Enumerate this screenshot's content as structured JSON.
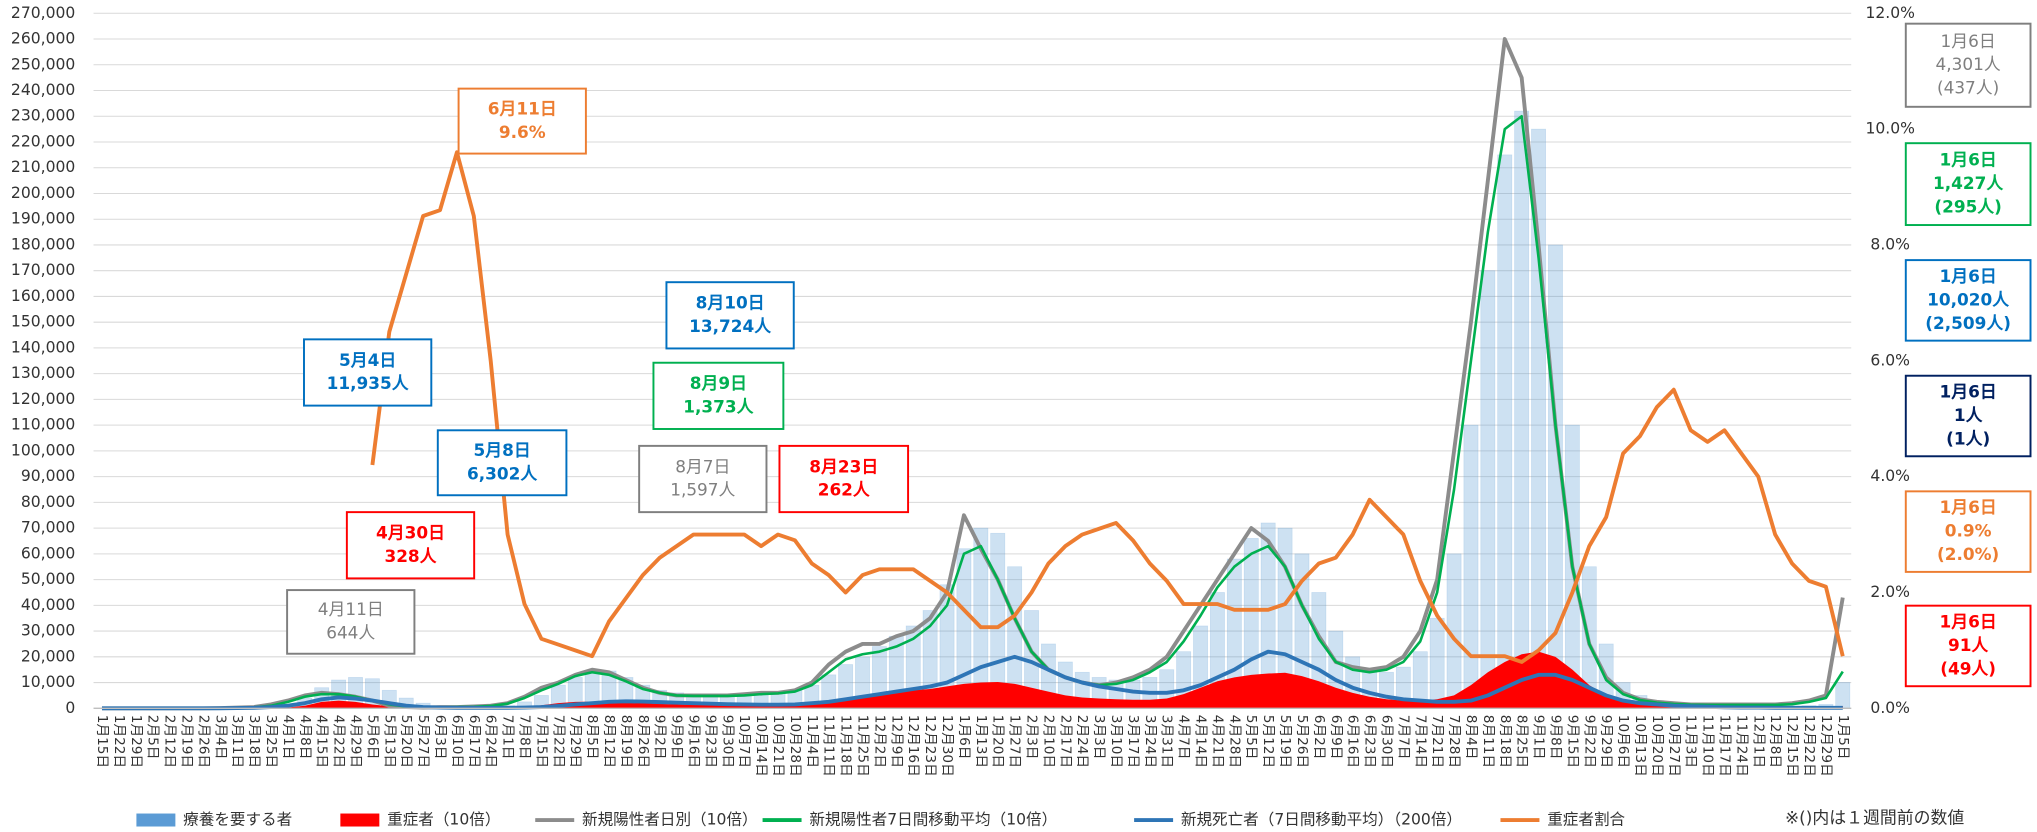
{
  "chart_data": {
    "type": "combo",
    "categories": [
      "1月15日",
      "1月22日",
      "1月29日",
      "2月5日",
      "2月12日",
      "2月19日",
      "2月26日",
      "3月4日",
      "3月11日",
      "3月18日",
      "3月25日",
      "4月1日",
      "4月8日",
      "4月15日",
      "4月22日",
      "4月29日",
      "5月6日",
      "5月13日",
      "5月20日",
      "5月27日",
      "6月3日",
      "6月10日",
      "6月17日",
      "6月24日",
      "7月1日",
      "7月8日",
      "7月15日",
      "7月22日",
      "7月29日",
      "8月5日",
      "8月12日",
      "8月19日",
      "8月26日",
      "9月2日",
      "9月9日",
      "9月16日",
      "9月23日",
      "9月30日",
      "10月7日",
      "10月14日",
      "10月21日",
      "10月28日",
      "11月4日",
      "11月11日",
      "11月18日",
      "11月25日",
      "12月2日",
      "12月9日",
      "12月16日",
      "12月23日",
      "12月30日",
      "1月6日",
      "1月13日",
      "1月20日",
      "1月27日",
      "2月3日",
      "2月10日",
      "2月17日",
      "2月24日",
      "3月3日",
      "3月10日",
      "3月17日",
      "3月24日",
      "3月31日",
      "4月7日",
      "4月14日",
      "4月21日",
      "4月28日",
      "5月5日",
      "5月12日",
      "5月19日",
      "5月26日",
      "6月2日",
      "6月9日",
      "6月16日",
      "6月23日",
      "6月30日",
      "7月7日",
      "7月14日",
      "7月21日",
      "7月28日",
      "8月4日",
      "8月11日",
      "8月18日",
      "8月25日",
      "9月1日",
      "9月8日",
      "9月15日",
      "9月22日",
      "9月29日",
      "10月6日",
      "10月13日",
      "10月20日",
      "10月27日",
      "11月3日",
      "11月10日",
      "11月17日",
      "11月24日",
      "12月1日",
      "12月8日",
      "12月15日",
      "12月22日",
      "12月29日",
      "1月5日"
    ],
    "series": [
      {
        "name": "療養を要する者",
        "color": "#5b9bd5",
        "kind": "bar",
        "values": [
          0,
          0,
          0,
          0,
          0,
          0,
          0,
          100,
          200,
          300,
          500,
          1500,
          4000,
          8000,
          11000,
          12000,
          11500,
          7000,
          4000,
          2000,
          1000,
          500,
          300,
          400,
          1000,
          2500,
          5000,
          9000,
          12000,
          14000,
          14500,
          12000,
          9000,
          7000,
          6000,
          5000,
          5000,
          5000,
          5000,
          5500,
          6000,
          7000,
          9000,
          13000,
          17000,
          20000,
          24000,
          28000,
          32000,
          38000,
          48000,
          62000,
          70000,
          68000,
          55000,
          38000,
          25000,
          18000,
          14000,
          12000,
          11000,
          11000,
          12000,
          15000,
          22000,
          32000,
          45000,
          58000,
          66000,
          72000,
          70000,
          60000,
          45000,
          30000,
          20000,
          15000,
          14000,
          16000,
          22000,
          35000,
          60000,
          110000,
          170000,
          215000,
          232000,
          225000,
          180000,
          110000,
          55000,
          25000,
          10000,
          5000,
          3000,
          2000,
          1500,
          1200,
          1000,
          1000,
          900,
          900,
          900,
          1000,
          1500,
          10020
        ]
      },
      {
        "name": "重症者（10倍）",
        "color": "#ff0000",
        "kind": "area",
        "values": [
          0,
          0,
          0,
          0,
          0,
          0,
          0,
          0,
          0,
          0,
          0,
          300,
          1000,
          2500,
          3000,
          2500,
          1500,
          800,
          400,
          200,
          100,
          100,
          100,
          100,
          200,
          500,
          1200,
          2000,
          2500,
          2600,
          2500,
          2300,
          2000,
          1700,
          1500,
          1400,
          1300,
          1300,
          1300,
          1300,
          1400,
          1600,
          2000,
          3000,
          4000,
          5000,
          6000,
          6500,
          7000,
          7500,
          8500,
          9500,
          10000,
          10200,
          9500,
          8000,
          6500,
          5000,
          4200,
          3800,
          3500,
          3300,
          3300,
          3800,
          5500,
          8000,
          10500,
          12000,
          13000,
          13500,
          13800,
          12500,
          10500,
          8000,
          6000,
          4500,
          3500,
          3000,
          3000,
          3500,
          5000,
          9000,
          14000,
          18000,
          21000,
          22000,
          20000,
          15000,
          9000,
          5000,
          3000,
          2000,
          1500,
          1200,
          1000,
          900,
          800,
          700,
          600,
          600,
          600,
          700,
          800,
          910
        ]
      },
      {
        "name": "新規陽性者日別（10倍）",
        "color": "#8c8c8c",
        "kind": "line",
        "width": 3,
        "values": [
          0,
          0,
          0,
          0,
          0,
          0,
          0,
          100,
          300,
          500,
          1500,
          3000,
          5000,
          6000,
          5500,
          4500,
          3000,
          1000,
          500,
          300,
          500,
          500,
          700,
          1000,
          2000,
          4500,
          8000,
          10000,
          13000,
          15000,
          14000,
          11000,
          8000,
          6000,
          5000,
          5000,
          5000,
          5000,
          5500,
          6000,
          6000,
          7000,
          10000,
          17000,
          22000,
          25000,
          25000,
          28000,
          30000,
          35000,
          45000,
          75000,
          62000,
          50000,
          35000,
          22000,
          15000,
          12000,
          10000,
          9000,
          10000,
          12000,
          15000,
          20000,
          30000,
          40000,
          50000,
          60000,
          70000,
          65000,
          55000,
          40000,
          28000,
          18000,
          16000,
          15000,
          16000,
          20000,
          30000,
          50000,
          100000,
          150000,
          205000,
          260000,
          245000,
          180000,
          110000,
          55000,
          25000,
          12000,
          6000,
          3500,
          2500,
          2000,
          1500,
          1500,
          1500,
          1500,
          1500,
          1500,
          2000,
          3000,
          5000,
          43010
        ]
      },
      {
        "name": "新規陽性者7日間移動平均（10倍）",
        "color": "#00b050",
        "kind": "line",
        "width": 2,
        "values": [
          0,
          0,
          0,
          0,
          0,
          0,
          0,
          100,
          200,
          400,
          1000,
          2500,
          4500,
          5500,
          5500,
          4500,
          3000,
          1500,
          700,
          400,
          400,
          500,
          600,
          900,
          1800,
          4000,
          7000,
          9500,
          12500,
          14000,
          13000,
          10500,
          7500,
          6000,
          5000,
          4800,
          4800,
          4800,
          5000,
          5500,
          5800,
          6500,
          9000,
          14000,
          19000,
          21000,
          22000,
          24000,
          27000,
          32000,
          40000,
          60000,
          63000,
          50000,
          35000,
          22000,
          15000,
          12000,
          10000,
          9000,
          9500,
          11000,
          14000,
          18000,
          26000,
          36000,
          47000,
          55000,
          60000,
          63000,
          55000,
          40000,
          27000,
          18000,
          15000,
          14000,
          15000,
          18000,
          26000,
          45000,
          85000,
          135000,
          185000,
          225000,
          230000,
          175000,
          110000,
          55000,
          25000,
          11000,
          5500,
          3200,
          2200,
          1700,
          1400,
          1300,
          1300,
          1300,
          1300,
          1300,
          1600,
          2500,
          4000,
          14270
        ]
      },
      {
        "name": "新規死亡者（7日間移動平均）（200倍）",
        "color": "#2e75b6",
        "kind": "line",
        "width": 3,
        "values": [
          0,
          0,
          0,
          0,
          0,
          0,
          0,
          0,
          100,
          200,
          500,
          1000,
          2000,
          3500,
          4200,
          3800,
          3000,
          2000,
          1000,
          500,
          300,
          200,
          200,
          200,
          200,
          300,
          500,
          900,
          1500,
          2000,
          2500,
          2700,
          2600,
          2400,
          2200,
          2000,
          1800,
          1600,
          1500,
          1400,
          1400,
          1500,
          2000,
          2500,
          3500,
          4500,
          5500,
          6500,
          7500,
          8500,
          10000,
          13000,
          16000,
          18000,
          20000,
          18000,
          15000,
          12000,
          10000,
          8500,
          7500,
          6500,
          6000,
          6000,
          7000,
          9000,
          12000,
          15000,
          19000,
          22000,
          21000,
          18000,
          15000,
          11000,
          8000,
          6000,
          4500,
          3500,
          3000,
          2500,
          2500,
          3000,
          5000,
          8000,
          11000,
          13000,
          13000,
          11000,
          8000,
          5000,
          3000,
          2000,
          1500,
          1000,
          800,
          600,
          400,
          300,
          300,
          200,
          200,
          200,
          200,
          200
        ]
      },
      {
        "name": "重症者割合",
        "color": "#ed7d31",
        "kind": "line",
        "width": 3,
        "axis": "y2",
        "values": [
          null,
          null,
          null,
          null,
          null,
          null,
          null,
          null,
          null,
          null,
          null,
          null,
          null,
          null,
          null,
          null,
          4.2,
          6.5,
          7.5,
          8.5,
          8.6,
          9.6,
          8.5,
          6.0,
          3.0,
          1.8,
          1.2,
          1.1,
          1.0,
          0.9,
          1.5,
          1.9,
          2.3,
          2.6,
          2.8,
          3.0,
          3.0,
          3.0,
          3.0,
          2.8,
          3.0,
          2.9,
          2.5,
          2.3,
          2.0,
          2.3,
          2.4,
          2.4,
          2.4,
          2.2,
          2.0,
          1.7,
          1.4,
          1.4,
          1.6,
          2.0,
          2.5,
          2.8,
          3.0,
          3.1,
          3.2,
          2.9,
          2.5,
          2.2,
          1.8,
          1.8,
          1.8,
          1.7,
          1.7,
          1.7,
          1.8,
          2.2,
          2.5,
          2.6,
          3.0,
          3.6,
          3.3,
          3.0,
          2.2,
          1.6,
          1.2,
          0.9,
          0.9,
          0.9,
          0.8,
          1.0,
          1.3,
          2.0,
          2.8,
          3.3,
          4.4,
          4.7,
          5.2,
          5.5,
          4.8,
          4.6,
          4.8,
          4.4,
          4.0,
          3.0,
          2.5,
          2.2,
          2.1,
          0.9
        ]
      }
    ],
    "ylim": [
      0,
      270000
    ],
    "yticks": [
      0,
      {
        "value": 10000,
        "label": "10,000"
      },
      {
        "value": 20000,
        "label": "20,000"
      },
      {
        "value": 30000,
        "label": "30,000"
      },
      {
        "value": 40000,
        "label": "40,000"
      },
      {
        "value": 50000,
        "label": "50,000"
      },
      {
        "value": 60000,
        "label": "60,000"
      },
      {
        "value": 70000,
        "label": "70,000"
      },
      {
        "value": 80000,
        "label": "80,000"
      },
      {
        "value": 90000,
        "label": "90,000"
      },
      {
        "value": 100000,
        "label": "100,000"
      },
      {
        "value": 110000,
        "label": "110,000"
      },
      {
        "value": 120000,
        "label": "120,000"
      },
      {
        "value": 130000,
        "label": "130,000"
      },
      {
        "value": 140000,
        "label": "140,000"
      },
      {
        "value": 150000,
        "label": "150,000"
      },
      {
        "value": 160000,
        "label": "160,000"
      },
      {
        "value": 170000,
        "label": "170,000"
      },
      {
        "value": 180000,
        "label": "180,000"
      },
      {
        "value": 190000,
        "label": "190,000"
      },
      {
        "value": 200000,
        "label": "200,000"
      },
      {
        "value": 210000,
        "label": "210,000"
      },
      {
        "value": 220000,
        "label": "220,000"
      },
      {
        "value": 230000,
        "label": "230,000"
      },
      {
        "value": 240000,
        "label": "240,000"
      },
      {
        "value": 250000,
        "label": "250,000"
      },
      {
        "value": 260000,
        "label": "260,000"
      },
      {
        "value": 270000,
        "label": "270,000"
      }
    ],
    "y2lim": [
      0,
      12
    ],
    "y2ticks": [
      {
        "value": 0,
        "label": "0.0%"
      },
      {
        "value": 2,
        "label": "2.0%"
      },
      {
        "value": 4,
        "label": "4.0%"
      },
      {
        "value": 6,
        "label": "6.0%"
      },
      {
        "value": 8,
        "label": "8.0%"
      },
      {
        "value": 10,
        "label": "10.0%"
      },
      {
        "value": 12,
        "label": "12.0%"
      }
    ],
    "grid": true,
    "annotations": [
      {
        "lines": [
          "6月11日",
          "9.6%"
        ],
        "color": "#ed7d31"
      },
      {
        "lines": [
          "5月4日",
          "11,935人"
        ],
        "color": "#0070c0"
      },
      {
        "lines": [
          "5月8日",
          "6,302人"
        ],
        "color": "#0070c0"
      },
      {
        "lines": [
          "4月30日",
          "328人"
        ],
        "color": "#ff0000"
      },
      {
        "lines": [
          "4月11日",
          "644人"
        ],
        "color": "#7f7f7f"
      },
      {
        "lines": [
          "8月10日",
          "13,724人"
        ],
        "color": "#0070c0"
      },
      {
        "lines": [
          "8月9日",
          "1,373人"
        ],
        "color": "#00b050"
      },
      {
        "lines": [
          "8月7日",
          "1,597人"
        ],
        "color": "#7f7f7f"
      },
      {
        "lines": [
          "8月23日",
          "262人"
        ],
        "color": "#ff0000"
      },
      {
        "lines": [
          "1月6日",
          "4,301人",
          "(437人)"
        ],
        "color": "#7f7f7f"
      },
      {
        "lines": [
          "1月6日",
          "1,427人",
          "(295人)"
        ],
        "color": "#00b050"
      },
      {
        "lines": [
          "1月6日",
          "10,020人",
          "(2,509人)"
        ],
        "color": "#0070c0"
      },
      {
        "lines": [
          "1月6日",
          "1人",
          "(1人)"
        ],
        "color": "#002060"
      },
      {
        "lines": [
          "1月6日",
          "0.9%",
          "(2.0%)"
        ],
        "color": "#ed7d31"
      },
      {
        "lines": [
          "1月6日",
          "91人",
          "(49人)"
        ],
        "color": "#ff0000"
      }
    ],
    "note": "※()内は１週間前の数値"
  }
}
